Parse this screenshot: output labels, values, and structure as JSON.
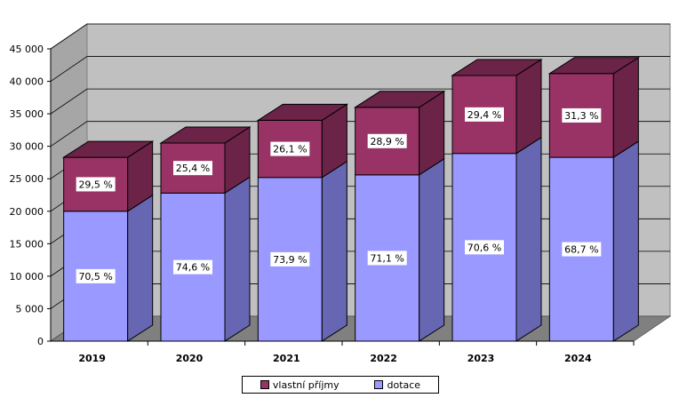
{
  "chart_data": {
    "type": "bar",
    "stacked": true,
    "three_d": true,
    "categories": [
      "2019",
      "2020",
      "2021",
      "2022",
      "2023",
      "2024"
    ],
    "series": [
      {
        "name": "dotace",
        "values": [
          20000,
          22800,
          25200,
          25600,
          28900,
          28300
        ],
        "labels": [
          "70,5 %",
          "74,6 %",
          "73,9 %",
          "71,1 %",
          "70,6 %",
          "68,7 %"
        ],
        "color": "#9999ff",
        "side_color": "#6666b3"
      },
      {
        "name": "vlastní příjmy",
        "values": [
          8300,
          7700,
          8800,
          10400,
          12000,
          12900
        ],
        "labels": [
          "29,5 %",
          "25,4 %",
          "26,1 %",
          "28,9 %",
          "29,4 %",
          "31,3 %"
        ],
        "color": "#993366",
        "side_color": "#6b2347"
      }
    ],
    "yticks": [
      "0",
      "5 000",
      "10 000",
      "15 000",
      "20 000",
      "25 000",
      "30 000",
      "35 000",
      "40 000",
      "45 000"
    ],
    "ylim": [
      0,
      45000
    ],
    "grid": true,
    "legend_position": "bottom",
    "legend_order": [
      "vlastní příjmy",
      "dotace"
    ]
  }
}
